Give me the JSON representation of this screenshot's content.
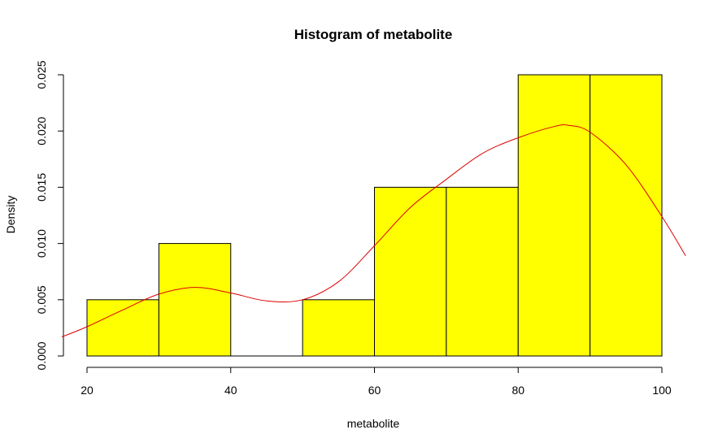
{
  "chart_data": {
    "type": "bar",
    "title": "Histogram of metabolite",
    "xlabel": "metabolite",
    "ylabel": "Density",
    "xlim": [
      20,
      100
    ],
    "ylim": [
      0,
      0.025
    ],
    "x_ticks": [
      "20",
      "40",
      "60",
      "80",
      "100"
    ],
    "y_ticks": [
      "0.000",
      "0.005",
      "0.010",
      "0.015",
      "0.020",
      "0.025"
    ],
    "bins": [
      {
        "from": 20,
        "to": 30,
        "density": 0.005
      },
      {
        "from": 30,
        "to": 40,
        "density": 0.01
      },
      {
        "from": 40,
        "to": 50,
        "density": 0.0
      },
      {
        "from": 50,
        "to": 60,
        "density": 0.005
      },
      {
        "from": 60,
        "to": 70,
        "density": 0.015
      },
      {
        "from": 70,
        "to": 80,
        "density": 0.015
      },
      {
        "from": 80,
        "to": 90,
        "density": 0.025
      },
      {
        "from": 90,
        "to": 100,
        "density": 0.025
      }
    ],
    "bar_color": "#ffff00",
    "curve_color": "#dd0000",
    "density_curve": {
      "x": [
        16.5,
        20,
        25,
        30,
        35,
        40,
        45,
        50,
        55,
        60,
        65,
        70,
        75,
        80,
        85,
        87,
        90,
        95,
        100,
        103.3
      ],
      "y": [
        0.0017,
        0.0026,
        0.0041,
        0.0055,
        0.0061,
        0.0056,
        0.0049,
        0.005,
        0.0066,
        0.0098,
        0.0132,
        0.0157,
        0.018,
        0.0194,
        0.0204,
        0.0205,
        0.0199,
        0.017,
        0.0124,
        0.0089
      ]
    }
  }
}
